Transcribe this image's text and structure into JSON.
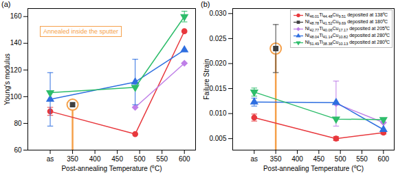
{
  "chart_data": [
    {
      "type": "line",
      "title": "(a)",
      "xlabel": "Post-annealing Temperature (⁰C)",
      "ylabel": "Young's modulus",
      "xlim": [
        250,
        625
      ],
      "xticks": [
        {
          "value": 300,
          "label": "as"
        },
        350,
        400,
        450,
        500,
        550,
        600
      ],
      "ylim": [
        60,
        166
      ],
      "yticks": [
        60,
        80,
        100,
        120,
        140,
        160
      ],
      "annotations": [
        {
          "text": "Annealed inside the sputter",
          "x": 350,
          "color": "#f5a04a"
        }
      ],
      "series": [
        {
          "name": "Ni46.01Ti44.48Cu9.51 deposited at 138⁰C",
          "color": "#e8383d",
          "marker": "circle",
          "x": [
            300,
            490,
            600
          ],
          "values": [
            89,
            72,
            149
          ],
          "errors": [
            3,
            null,
            null
          ]
        },
        {
          "name": "Ni48.78Ti41.52Cu9.69 deposited at 180⁰C",
          "color": "#404040",
          "marker": "square",
          "x": [
            350
          ],
          "values": [
            94
          ],
          "errors": [
            null
          ]
        },
        {
          "name": "Ni42.77Ti40.06Cu17.17 deposited at 205⁰C",
          "color": "#bf7fe8",
          "marker": "diamond",
          "x": [
            490,
            600
          ],
          "values": [
            92,
            125
          ],
          "errors": [
            null,
            null
          ]
        },
        {
          "name": "Ni48.04Ti41.14Cu10.82 deposited at 280⁰C",
          "color": "#2f6fe0",
          "marker": "triangle",
          "x": [
            300,
            490,
            600
          ],
          "values": [
            98,
            111,
            135
          ],
          "errors": [
            20,
            17,
            null
          ]
        },
        {
          "name": "Ni51.49Ti38.38Cu10.13 deposited at 280⁰C",
          "color": "#2ebd6b",
          "marker": "triangle-down",
          "x": [
            300,
            490,
            600
          ],
          "values": [
            103,
            107,
            160
          ],
          "errors": [
            null,
            null,
            4
          ]
        }
      ]
    },
    {
      "type": "line",
      "title": "(b)",
      "xlabel": "Post-annealing Temperature (⁰C)",
      "ylabel": "Failure Strain",
      "xlim": [
        250,
        625
      ],
      "xticks": [
        {
          "value": 300,
          "label": "as"
        },
        350,
        400,
        450,
        500,
        550,
        600
      ],
      "ylim": [
        0.0027,
        0.031
      ],
      "yticks": [
        {
          "value": 0.005,
          "label": "0.005"
        },
        {
          "value": 0.01,
          "label": "0.010"
        },
        {
          "value": 0.015,
          "label": "0.015"
        },
        {
          "value": 0.02,
          "label": "0.020"
        },
        {
          "value": 0.025,
          "label": "0.025"
        },
        {
          "value": 0.03,
          "label": "0.030"
        }
      ],
      "legend": "top-right",
      "annotations": [
        {
          "x": 350,
          "color": "#f5a04a"
        }
      ],
      "series": [
        {
          "name": "Ni46.01Ti44.48Cu9.51 deposited at 138⁰C",
          "color": "#e8383d",
          "marker": "circle",
          "x": [
            300,
            490,
            600
          ],
          "values": [
            0.0092,
            0.005,
            0.0062
          ],
          "errors": [
            0.0007,
            0.0004,
            0.0003
          ]
        },
        {
          "name": "Ni48.78Ti41.52Cu9.69 deposited at 180⁰C",
          "color": "#404040",
          "marker": "square",
          "x": [
            350
          ],
          "values": [
            0.023
          ],
          "errors": [
            0.0048
          ]
        },
        {
          "name": "Ni42.77Ti40.06Cu17.17 deposited at 205⁰C",
          "color": "#bf7fe8",
          "marker": "diamond",
          "x": [
            490,
            600
          ],
          "values": [
            0.012,
            0.0082
          ],
          "errors": [
            0.0045,
            null
          ]
        },
        {
          "name": "Ni48.04Ti41.14Cu10.82 deposited at 280⁰C",
          "color": "#2f6fe0",
          "marker": "triangle",
          "x": [
            300,
            490,
            600
          ],
          "values": [
            0.0123,
            0.0122,
            0.0068
          ],
          "errors": [
            0.0008,
            null,
            null
          ]
        },
        {
          "name": "Ni51.49Ti38.38Cu10.13 deposited at 280⁰C",
          "color": "#2ebd6b",
          "marker": "triangle-down",
          "x": [
            300,
            490,
            600
          ],
          "values": [
            0.0143,
            0.0089,
            0.0088
          ],
          "errors": [
            0.0008,
            null,
            null
          ]
        }
      ]
    }
  ]
}
